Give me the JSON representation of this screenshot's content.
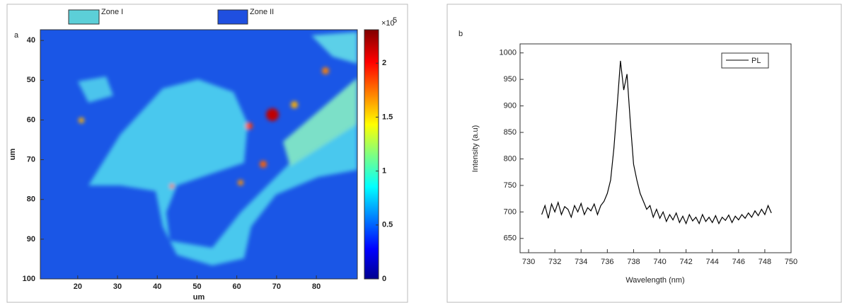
{
  "chart_data": [
    {
      "type": "heatmap",
      "panel_label": "a",
      "xlabel": "um",
      "ylabel": "um",
      "xlim": [
        10.6,
        90.3
      ],
      "xticks": [
        20,
        30,
        40,
        50,
        60,
        70,
        80
      ],
      "ylim": [
        100,
        37.3
      ],
      "yticks": [
        40,
        50,
        60,
        70,
        80,
        90,
        100
      ],
      "colorbar": {
        "lim": [
          0,
          2.31
        ],
        "ticks": [
          0,
          0.5,
          1,
          1.5,
          2
        ],
        "multiplier": "×10",
        "exponent": "5"
      },
      "legend": [
        {
          "name": "Zone I",
          "color": "#5ccfd8"
        },
        {
          "name": "Zone II",
          "color": "#1f4fe0"
        }
      ]
    },
    {
      "type": "line",
      "panel_label": "b",
      "xlabel": "Wavelength (nm)",
      "ylabel": "Intensity (a.u)",
      "xlim": [
        729.35,
        750
      ],
      "xticks": [
        730,
        732,
        734,
        736,
        738,
        740,
        742,
        744,
        746,
        748,
        750
      ],
      "ylim": [
        623,
        1017
      ],
      "yticks": [
        650,
        700,
        750,
        800,
        850,
        900,
        950,
        1000
      ],
      "series": [
        {
          "name": "PL",
          "color": "#000000",
          "x": [
            731,
            731.25,
            731.5,
            731.75,
            732,
            732.25,
            732.5,
            732.75,
            733,
            733.25,
            733.5,
            733.75,
            734,
            734.25,
            734.5,
            734.75,
            735,
            735.25,
            735.5,
            735.75,
            736,
            736.25,
            736.5,
            736.75,
            737,
            737.25,
            737.5,
            737.75,
            738,
            738.25,
            738.5,
            738.75,
            739,
            739.25,
            739.5,
            739.75,
            740,
            740.25,
            740.5,
            740.75,
            741,
            741.25,
            741.5,
            741.75,
            742,
            742.25,
            742.5,
            742.75,
            743,
            743.25,
            743.5,
            743.75,
            744,
            744.25,
            744.5,
            744.75,
            745,
            745.25,
            745.5,
            745.75,
            746,
            746.25,
            746.5,
            746.75,
            747,
            747.25,
            747.5,
            747.75,
            748,
            748.25,
            748.5
          ],
          "values": [
            695,
            712,
            688,
            715,
            700,
            718,
            695,
            710,
            705,
            690,
            712,
            700,
            716,
            695,
            708,
            702,
            715,
            695,
            712,
            720,
            735,
            760,
            820,
            900,
            985,
            930,
            960,
            870,
            790,
            760,
            735,
            720,
            705,
            712,
            690,
            705,
            688,
            700,
            682,
            695,
            685,
            698,
            680,
            692,
            678,
            695,
            683,
            690,
            678,
            695,
            682,
            690,
            680,
            693,
            678,
            690,
            684,
            694,
            680,
            692,
            685,
            695,
            688,
            698,
            690,
            702,
            693,
            705,
            695,
            712,
            698
          ]
        }
      ]
    }
  ]
}
